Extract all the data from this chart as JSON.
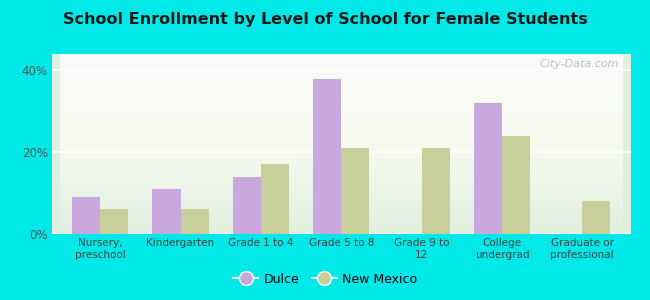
{
  "title": "School Enrollment by Level of School for Female Students",
  "categories": [
    "Nursery,\npreschool",
    "Kindergarten",
    "Grade 1 to 4",
    "Grade 5 to 8",
    "Grade 9 to\n12",
    "College\nundergrad",
    "Graduate or\nprofessional"
  ],
  "dulce": [
    9,
    11,
    14,
    38,
    0,
    32,
    0
  ],
  "new_mexico": [
    6,
    6,
    17,
    21,
    21,
    24,
    8
  ],
  "dulce_color": "#c9a8e0",
  "nm_color": "#c8cf9a",
  "background_color": "#00e8e8",
  "plot_bg_top": "#f0f5e8",
  "plot_bg_bottom": "#e0f0e0",
  "yticks": [
    0,
    20,
    40
  ],
  "ylim": [
    0,
    44
  ],
  "legend_dulce": "Dulce",
  "legend_nm": "New Mexico",
  "watermark": "City-Data.com",
  "bar_width": 0.35
}
